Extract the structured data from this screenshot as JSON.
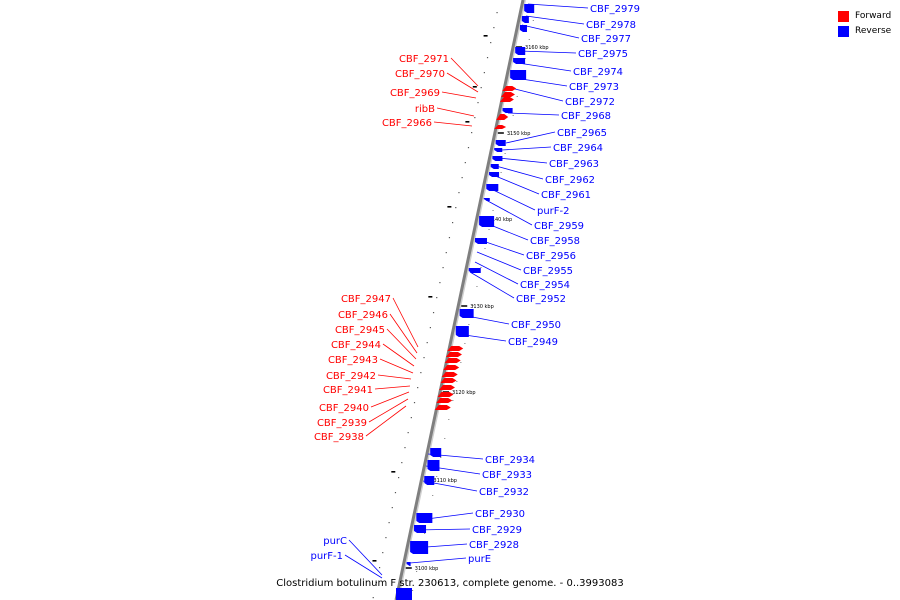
{
  "caption": "Clostridium botulinum F str. 230613, complete genome. - 0..3993083",
  "legend": [
    {
      "label": "Forward",
      "color": "#ff0000"
    },
    {
      "label": "Reverse",
      "color": "#0000ff"
    }
  ],
  "colors": {
    "forward": "#ff0000",
    "reverse": "#0000ff",
    "backbone": "#7f7f7f"
  },
  "scale_ticks": [
    "3100 kbp",
    "3110 kbp",
    "3120 kbp",
    "3130 kbp",
    "3140 kbp",
    "3150 kbp",
    "3160 kbp"
  ],
  "genes": {
    "reverse": [
      "CBF_2979",
      "CBF_2978",
      "CBF_2977",
      "CBF_2975",
      "CBF_2974",
      "CBF_2973",
      "CBF_2972",
      "CBF_2968",
      "CBF_2965",
      "CBF_2964",
      "CBF_2963",
      "CBF_2962",
      "CBF_2961",
      "purF-2",
      "CBF_2959",
      "CBF_2958",
      "CBF_2956",
      "CBF_2955",
      "CBF_2954",
      "CBF_2952",
      "CBF_2950",
      "CBF_2949",
      "CBF_2934",
      "CBF_2933",
      "CBF_2932",
      "CBF_2930",
      "CBF_2929",
      "CBF_2928",
      "purE"
    ],
    "forward": [
      "CBF_2971",
      "CBF_2970",
      "CBF_2969",
      "ribB",
      "CBF_2966",
      "CBF_2947",
      "CBF_2946",
      "CBF_2945",
      "CBF_2944",
      "CBF_2943",
      "CBF_2942",
      "CBF_2941",
      "CBF_2940",
      "CBF_2939",
      "CBF_2938"
    ],
    "reverse_left": [
      "purC",
      "purF-1"
    ]
  }
}
